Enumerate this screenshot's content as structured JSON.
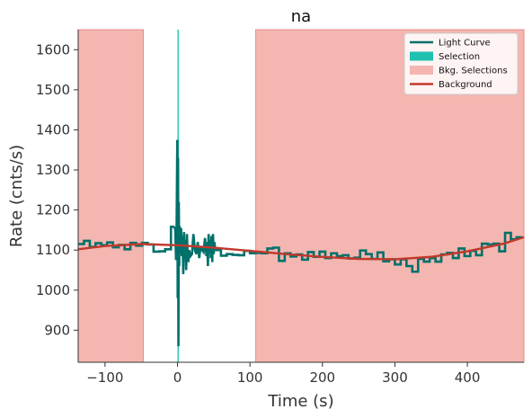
{
  "chart_data": {
    "type": "line",
    "title": "na",
    "xlabel": "Time (s)",
    "ylabel": "Rate (cnts/s)",
    "xlim": [
      -137,
      478
    ],
    "ylim": [
      820,
      1650
    ],
    "x_ticks": [
      -100,
      0,
      100,
      200,
      300,
      400
    ],
    "x_tick_labels": [
      "−100",
      "0",
      "100",
      "200",
      "300",
      "400"
    ],
    "y_ticks": [
      900,
      1000,
      1100,
      1200,
      1300,
      1400,
      1500,
      1600
    ],
    "y_tick_labels": [
      "900",
      "1000",
      "1100",
      "1200",
      "1300",
      "1400",
      "1500",
      "1600"
    ],
    "grid": false,
    "legend_position": "top-right",
    "legend": [
      {
        "label": "Light Curve",
        "kind": "line",
        "color": "#00706b"
      },
      {
        "label": "Selection",
        "kind": "patch",
        "color": "#20c0b0"
      },
      {
        "label": "Bkg. Selections",
        "kind": "patch",
        "color": "#f4b6b0"
      },
      {
        "label": "Background",
        "kind": "line",
        "color": "#c0392b"
      }
    ],
    "colors": {
      "light_curve": "#00706b",
      "selection": "#20c0b0",
      "bkg_selection": "#f4b6b0",
      "bkg_selection_edge": "#e88a8a",
      "background": "#c0392b"
    },
    "bkg_selections": [
      [
        -137,
        -47
      ],
      [
        108,
        478
      ]
    ],
    "selection": [
      0,
      2
    ],
    "light_curve": {
      "coarse_bins": [
        [
          -137,
          -129,
          1115
        ],
        [
          -129,
          -121,
          1123
        ],
        [
          -121,
          -113,
          1108
        ],
        [
          -113,
          -105,
          1117
        ],
        [
          -105,
          -97,
          1112
        ],
        [
          -97,
          -89,
          1119
        ],
        [
          -89,
          -81,
          1107
        ],
        [
          -81,
          -73,
          1113
        ],
        [
          -73,
          -65,
          1102
        ],
        [
          -65,
          -57,
          1118
        ],
        [
          -57,
          -49,
          1111
        ],
        [
          -49,
          -41,
          1118
        ],
        [
          -41,
          -33,
          1114
        ],
        [
          -33,
          -25,
          1096
        ],
        [
          -25,
          -17,
          1097
        ],
        [
          -17,
          -9,
          1102
        ],
        [
          -9,
          -4,
          1158
        ],
        [
          52,
          60,
          1100
        ],
        [
          60,
          68,
          1086
        ],
        [
          68,
          76,
          1090
        ],
        [
          76,
          84,
          1088
        ],
        [
          84,
          92,
          1087
        ],
        [
          92,
          100,
          1098
        ],
        [
          100,
          108,
          1092
        ],
        [
          108,
          116,
          1093
        ],
        [
          116,
          124,
          1092
        ],
        [
          124,
          132,
          1104
        ],
        [
          132,
          140,
          1106
        ],
        [
          140,
          148,
          1073
        ],
        [
          148,
          156,
          1092
        ],
        [
          156,
          164,
          1084
        ],
        [
          164,
          172,
          1089
        ],
        [
          172,
          180,
          1076
        ],
        [
          180,
          188,
          1095
        ],
        [
          188,
          196,
          1083
        ],
        [
          196,
          204,
          1096
        ],
        [
          204,
          212,
          1080
        ],
        [
          212,
          220,
          1092
        ],
        [
          220,
          228,
          1085
        ],
        [
          228,
          236,
          1087
        ],
        [
          236,
          244,
          1079
        ],
        [
          244,
          252,
          1081
        ],
        [
          252,
          260,
          1099
        ],
        [
          260,
          268,
          1090
        ],
        [
          268,
          276,
          1078
        ],
        [
          276,
          284,
          1094
        ],
        [
          284,
          292,
          1072
        ],
        [
          292,
          300,
          1077
        ],
        [
          300,
          308,
          1064
        ],
        [
          308,
          316,
          1077
        ],
        [
          316,
          324,
          1060
        ],
        [
          324,
          332,
          1046
        ],
        [
          332,
          340,
          1078
        ],
        [
          340,
          348,
          1071
        ],
        [
          348,
          356,
          1080
        ],
        [
          356,
          364,
          1071
        ],
        [
          364,
          372,
          1089
        ],
        [
          372,
          380,
          1093
        ],
        [
          380,
          388,
          1080
        ],
        [
          388,
          396,
          1104
        ],
        [
          396,
          404,
          1085
        ],
        [
          404,
          412,
          1098
        ],
        [
          412,
          420,
          1087
        ],
        [
          420,
          428,
          1116
        ],
        [
          428,
          436,
          1114
        ],
        [
          436,
          444,
          1116
        ],
        [
          444,
          452,
          1097
        ],
        [
          452,
          460,
          1143
        ],
        [
          460,
          468,
          1127
        ],
        [
          468,
          476,
          1132
        ]
      ],
      "fine_segment": [
        [
          -4,
          1158
        ],
        [
          -3,
          1150
        ],
        [
          -2,
          1075
        ],
        [
          -1.3,
          1125
        ],
        [
          -0.7,
          1270
        ],
        [
          -0.2,
          1375
        ],
        [
          0.3,
          980
        ],
        [
          0.8,
          1330
        ],
        [
          1.3,
          860
        ],
        [
          1.8,
          1220
        ],
        [
          2.4,
          1060
        ],
        [
          3,
          1160
        ],
        [
          4,
          1100
        ],
        [
          5,
          1155
        ],
        [
          6,
          1085
        ],
        [
          7,
          1135
        ],
        [
          8,
          1040
        ],
        [
          9,
          1145
        ],
        [
          10,
          1080
        ],
        [
          11,
          1125
        ],
        [
          12,
          1050
        ],
        [
          13,
          1140
        ],
        [
          14,
          1090
        ],
        [
          15,
          1070
        ],
        [
          16,
          1100
        ],
        [
          18,
          1085
        ],
        [
          20,
          1090
        ],
        [
          22,
          1140
        ],
        [
          24,
          1100
        ],
        [
          26,
          1090
        ],
        [
          28,
          1120
        ],
        [
          30,
          1080
        ],
        [
          32,
          1110
        ],
        [
          34,
          1100
        ],
        [
          36,
          1095
        ],
        [
          38,
          1130
        ],
        [
          40,
          1085
        ],
        [
          41,
          1120
        ],
        [
          42,
          1060
        ],
        [
          43,
          1140
        ],
        [
          44,
          1095
        ],
        [
          45,
          1125
        ],
        [
          46,
          1080
        ],
        [
          47,
          1135
        ],
        [
          48,
          1070
        ],
        [
          49,
          1140
        ],
        [
          50,
          1090
        ],
        [
          51,
          1120
        ],
        [
          52,
          1100
        ]
      ]
    },
    "background": {
      "x": [
        -137,
        -100,
        -50,
        0,
        50,
        100,
        150,
        200,
        250,
        300,
        350,
        400,
        450,
        478
      ],
      "y": [
        1102,
        1110,
        1115,
        1112,
        1106,
        1098,
        1090,
        1083,
        1078,
        1077,
        1083,
        1097,
        1116,
        1132
      ]
    }
  }
}
